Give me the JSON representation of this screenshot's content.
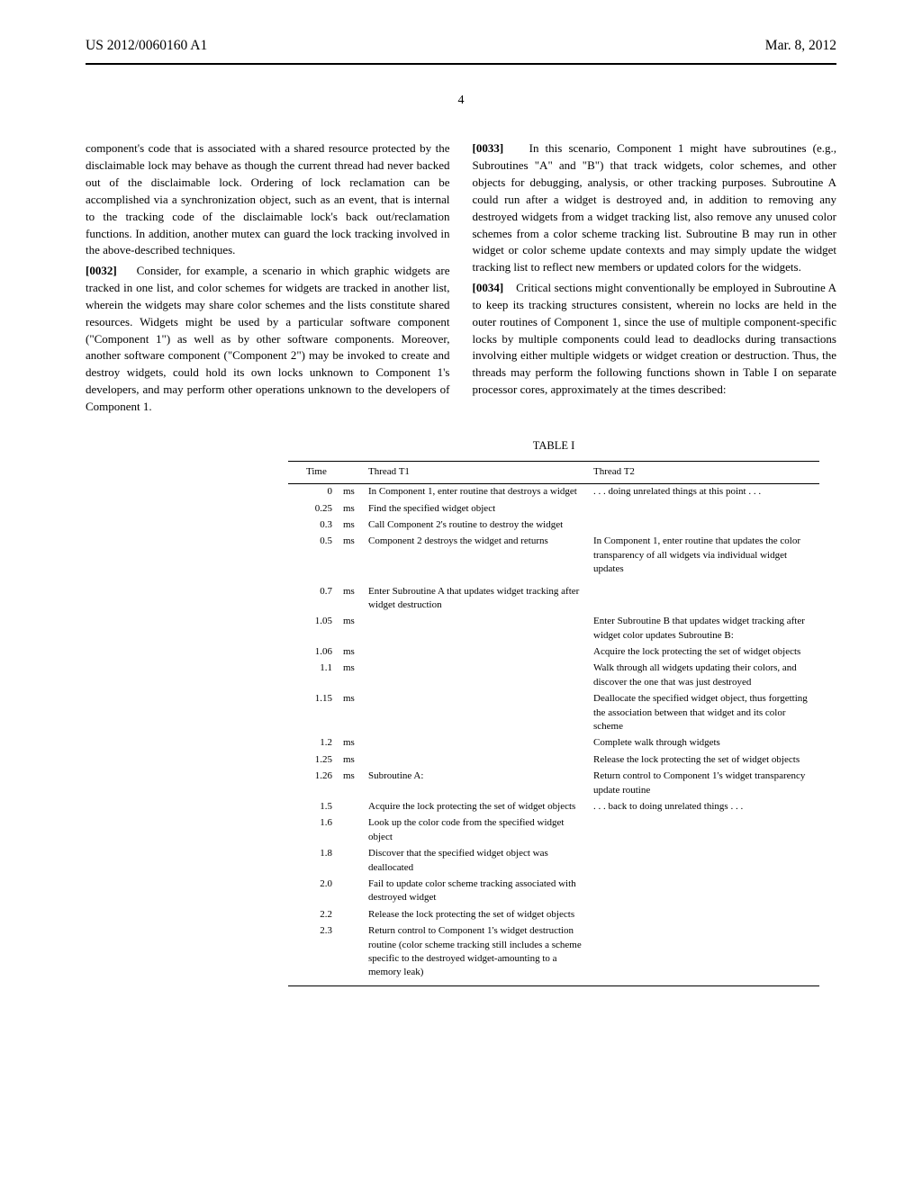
{
  "header": {
    "pub_number": "US 2012/0060160 A1",
    "date": "Mar. 8, 2012"
  },
  "page_number": "4",
  "left_column": {
    "para_0032_continuation": "component's code that is associated with a shared resource protected by the disclaimable lock may behave as though the current thread had never backed out of the disclaimable lock. Ordering of lock reclamation can be accomplished via a synchronization object, such as an event, that is internal to the tracking code of the disclaimable lock's back out/reclamation functions. In addition, another mutex can guard the lock tracking involved in the above-described techniques.",
    "para_0032_label": "[0032]",
    "para_0032": "Consider, for example, a scenario in which graphic widgets are tracked in one list, and color schemes for widgets are tracked in another list, wherein the widgets may share color schemes and the lists constitute shared resources. Widgets might be used by a particular software component (\"Component 1\") as well as by other software components. Moreover, another software component (\"Component 2\") may be invoked to create and destroy widgets, could hold its own locks unknown to Component 1's developers, and may perform other operations unknown to the developers of Component 1."
  },
  "right_column": {
    "para_0033_label": "[0033]",
    "para_0033": "In this scenario, Component 1 might have subroutines (e.g., Subroutines \"A\" and \"B\") that track widgets, color schemes, and other objects for debugging, analysis, or other tracking purposes. Subroutine A could run after a widget is destroyed and, in addition to removing any destroyed widgets from a widget tracking list, also remove any unused color schemes from a color scheme tracking list. Subroutine B may run in other widget or color scheme update contexts and may simply update the widget tracking list to reflect new members or updated colors for the widgets.",
    "para_0034_label": "[0034]",
    "para_0034": "Critical sections might conventionally be employed in Subroutine A to keep its tracking structures consistent, wherein no locks are held in the outer routines of Component 1, since the use of multiple component-specific locks by multiple components could lead to deadlocks during transactions involving either multiple widgets or widget creation or destruction. Thus, the threads may perform the following functions shown in Table I on separate processor cores, approximately at the times described:"
  },
  "table": {
    "label": "TABLE I",
    "headers": {
      "time": "Time",
      "t1": "Thread T1",
      "t2": "Thread T2"
    },
    "rows": [
      {
        "time": "0",
        "unit": "ms",
        "t1": "In Component 1, enter routine that destroys a widget",
        "t2": ". . . doing unrelated things at this point . . ."
      },
      {
        "time": "0.25",
        "unit": "ms",
        "t1": "Find the specified widget object",
        "t2": ""
      },
      {
        "time": "0.3",
        "unit": "ms",
        "t1": "Call Component 2's routine to destroy the widget",
        "t2": ""
      },
      {
        "time": "0.5",
        "unit": "ms",
        "t1": "Component 2 destroys the widget and returns",
        "t2": "In Component 1, enter routine that updates the color transparency of all widgets via individual widget updates"
      },
      {
        "time": "0.7",
        "unit": "ms",
        "t1": "Enter Subroutine A that updates widget tracking after widget destruction",
        "t2": ""
      },
      {
        "time": "1.05",
        "unit": "ms",
        "t1": "",
        "t2": "Enter Subroutine B that updates widget tracking after widget color updates Subroutine B:"
      },
      {
        "time": "1.06",
        "unit": "ms",
        "t1": "",
        "t2": "Acquire the lock protecting the set of widget objects"
      },
      {
        "time": "1.1",
        "unit": "ms",
        "t1": "",
        "t2": "Walk through all widgets updating their colors, and discover the one that was just destroyed"
      },
      {
        "time": "1.15",
        "unit": "ms",
        "t1": "",
        "t2": "Deallocate the specified widget object, thus forgetting the association between that widget and its color scheme"
      },
      {
        "time": "1.2",
        "unit": "ms",
        "t1": "",
        "t2": "Complete walk through widgets"
      },
      {
        "time": "1.25",
        "unit": "ms",
        "t1": "",
        "t2": "Release the lock protecting the set of widget objects"
      },
      {
        "time": "1.26",
        "unit": "ms",
        "t1": "Subroutine A:",
        "t2": "Return control to Component 1's widget transparency update routine"
      },
      {
        "time": "1.5",
        "unit": "",
        "t1": "Acquire the lock protecting the set of widget objects",
        "t2": ". . . back to doing unrelated things . . ."
      },
      {
        "time": "1.6",
        "unit": "",
        "t1": "Look up the color code from the specified widget object",
        "t2": ""
      },
      {
        "time": "1.8",
        "unit": "",
        "t1": "Discover that the specified widget object was deallocated",
        "t2": ""
      },
      {
        "time": "2.0",
        "unit": "",
        "t1": "Fail to update color scheme tracking associated with destroyed widget",
        "t2": ""
      },
      {
        "time": "2.2",
        "unit": "",
        "t1": "Release the lock protecting the set of widget objects",
        "t2": ""
      },
      {
        "time": "2.3",
        "unit": "",
        "t1": "Return control to Component 1's widget destruction routine (color scheme tracking still includes a scheme specific to the destroyed widget-amounting to a memory leak)",
        "t2": ""
      }
    ]
  }
}
